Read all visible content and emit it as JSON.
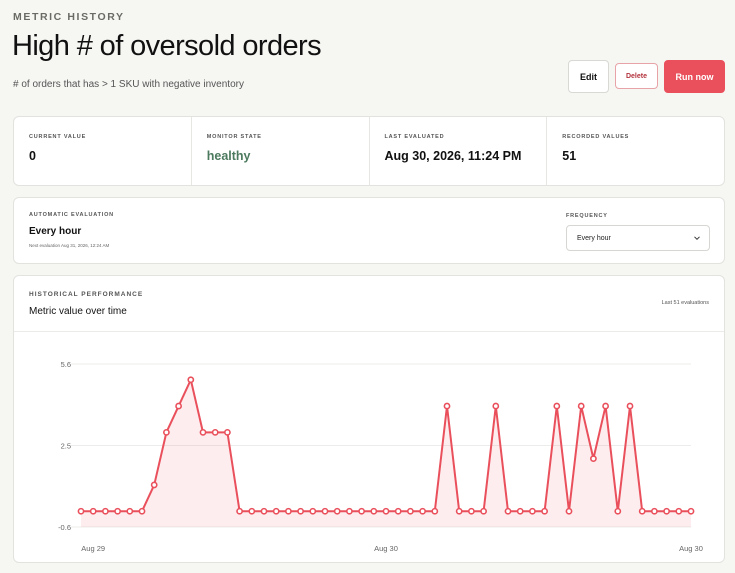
{
  "header": {
    "eyebrow": "METRIC HISTORY",
    "title": "High # of oversold orders",
    "subtitle": "# of orders that has > 1 SKU with negative inventory"
  },
  "actions": {
    "edit": "Edit",
    "delete": "Delete",
    "run": "Run now"
  },
  "stats": [
    {
      "label": "CURRENT VALUE",
      "value": "0"
    },
    {
      "label": "MONITOR STATE",
      "value": "healthy"
    },
    {
      "label": "LAST EVALUATED",
      "value": "Aug 30, 2026, 11:24 PM"
    },
    {
      "label": "RECORDED VALUES",
      "value": "51"
    }
  ],
  "evaluation": {
    "label": "AUTOMATIC EVALUATION",
    "value": "Every hour",
    "next": "Next evaluation Aug 31, 2026, 12:24 AM",
    "frequency_label": "FREQUENCY",
    "frequency_value": "Every hour"
  },
  "history": {
    "label": "HISTORICAL PERFORMANCE",
    "title": "Metric value over time",
    "count": "Last 51 evaluations"
  },
  "colors": {
    "accent": "#e9505c",
    "healthy": "#4c7a5e"
  },
  "chart_data": {
    "type": "line",
    "title": "Metric value over time",
    "xlabel": "",
    "ylabel": "",
    "y_ticks": [
      "5.6",
      "2.5",
      "-0.6"
    ],
    "ylim": [
      -0.6,
      5.6
    ],
    "x_ticks": [
      "Aug 29",
      "Aug 30",
      "Aug 30"
    ],
    "x_tick_index": [
      1,
      25,
      50
    ],
    "grid": true,
    "values": [
      0,
      0,
      0,
      0,
      0,
      0,
      1,
      3,
      4,
      5,
      3,
      3,
      3,
      0,
      0,
      0,
      0,
      0,
      0,
      0,
      0,
      0,
      0,
      0,
      0,
      0,
      0,
      0,
      0,
      0,
      4,
      0,
      0,
      0,
      4,
      0,
      0,
      0,
      0,
      4,
      0,
      4,
      2,
      4,
      0,
      4,
      0,
      0,
      0,
      0,
      0
    ]
  }
}
